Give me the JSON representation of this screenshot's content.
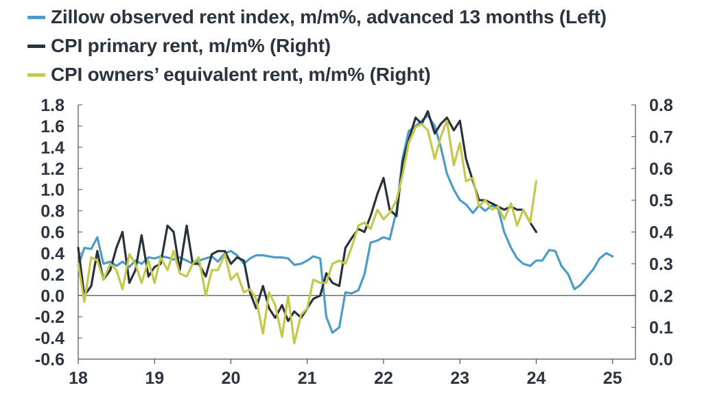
{
  "chart_data": {
    "type": "line",
    "title": "",
    "legend": [
      {
        "label": "Zillow observed rent index, m/m%, advanced 13 months (Left)",
        "color": "#4a9cc7"
      },
      {
        "label": "CPI primary rent, m/m% (Right)",
        "color": "#27323b"
      },
      {
        "label": "CPI owners’ equivalent rent, m/m% (Right)",
        "color": "#c4c84a"
      }
    ],
    "legend_position": "top-left",
    "x_ticks": [
      "18",
      "19",
      "20",
      "21",
      "22",
      "23",
      "24",
      "25"
    ],
    "xlim": [
      18,
      25.3
    ],
    "y_left": {
      "ylim": [
        -0.6,
        1.8
      ],
      "ticks": [
        "1.8",
        "1.6",
        "1.4",
        "1.2",
        "1.0",
        "0.8",
        "0.6",
        "0.4",
        "0.2",
        "0.0",
        "-0.2",
        "-0.4",
        "-0.6"
      ]
    },
    "y_right": {
      "ylim": [
        0.0,
        0.8
      ],
      "ticks": [
        "0.8",
        "0.7",
        "0.6",
        "0.5",
        "0.4",
        "0.3",
        "0.2",
        "0.1",
        "0.0"
      ]
    },
    "zero_line": 0,
    "series": [
      {
        "name": "Zillow observed rent index, m/m%, advanced 13 months (Left)",
        "axis": "left",
        "color": "#4a9cc7",
        "x": [
          18.0,
          18.08,
          18.17,
          18.25,
          18.33,
          18.42,
          18.5,
          18.58,
          18.67,
          18.75,
          18.83,
          18.92,
          19.0,
          19.08,
          19.17,
          19.25,
          19.33,
          19.42,
          19.5,
          19.58,
          19.67,
          19.75,
          19.83,
          19.92,
          20.0,
          20.08,
          20.17,
          20.25,
          20.33,
          20.42,
          20.5,
          20.58,
          20.67,
          20.75,
          20.83,
          20.92,
          21.0,
          21.08,
          21.17,
          21.25,
          21.33,
          21.42,
          21.5,
          21.58,
          21.67,
          21.75,
          21.83,
          21.92,
          22.0,
          22.08,
          22.17,
          22.25,
          22.33,
          22.42,
          22.5,
          22.58,
          22.67,
          22.75,
          22.83,
          22.92,
          23.0,
          23.08,
          23.17,
          23.25,
          23.33,
          23.42,
          23.5,
          23.58,
          23.67,
          23.75,
          23.83,
          23.92,
          24.0,
          24.08,
          24.17,
          24.25,
          24.33,
          24.42,
          24.5,
          24.58,
          24.67,
          24.75,
          24.83,
          24.92,
          25.0
        ],
        "values": [
          0.28,
          0.45,
          0.44,
          0.55,
          0.3,
          0.32,
          0.28,
          0.32,
          0.27,
          0.33,
          0.3,
          0.36,
          0.35,
          0.37,
          0.36,
          0.34,
          0.36,
          0.33,
          0.3,
          0.33,
          0.35,
          0.37,
          0.32,
          0.4,
          0.42,
          0.38,
          0.3,
          0.35,
          0.38,
          0.38,
          0.37,
          0.36,
          0.36,
          0.35,
          0.29,
          0.3,
          0.33,
          0.37,
          0.35,
          -0.2,
          -0.35,
          -0.3,
          0.03,
          0.02,
          0.05,
          0.2,
          0.5,
          0.52,
          0.55,
          0.53,
          0.8,
          1.3,
          1.55,
          1.6,
          1.65,
          1.7,
          1.6,
          1.4,
          1.15,
          1.0,
          0.9,
          0.86,
          0.78,
          0.85,
          0.8,
          0.85,
          0.82,
          0.6,
          0.45,
          0.35,
          0.3,
          0.28,
          0.33,
          0.33,
          0.43,
          0.42,
          0.28,
          0.2,
          0.06,
          0.1,
          0.18,
          0.25,
          0.35,
          0.4,
          0.37
        ]
      },
      {
        "name": "CPI primary rent, m/m% (Right)",
        "axis": "right",
        "color": "#27323b",
        "x": [
          18.0,
          18.08,
          18.17,
          18.25,
          18.33,
          18.42,
          18.5,
          18.58,
          18.67,
          18.75,
          18.83,
          18.92,
          19.0,
          19.08,
          19.17,
          19.25,
          19.33,
          19.42,
          19.5,
          19.58,
          19.67,
          19.75,
          19.83,
          19.92,
          20.0,
          20.08,
          20.17,
          20.25,
          20.33,
          20.42,
          20.5,
          20.58,
          20.67,
          20.75,
          20.83,
          20.92,
          21.0,
          21.08,
          21.17,
          21.25,
          21.33,
          21.42,
          21.5,
          21.58,
          21.67,
          21.75,
          21.83,
          21.92,
          22.0,
          22.08,
          22.17,
          22.25,
          22.33,
          22.42,
          22.5,
          22.58,
          22.67,
          22.75,
          22.83,
          22.92,
          23.0,
          23.08,
          23.17,
          23.25,
          23.33,
          23.42,
          23.5,
          23.58,
          23.67,
          23.75,
          23.83,
          23.92,
          24.0
        ],
        "values": [
          0.35,
          0.2,
          0.23,
          0.34,
          0.25,
          0.28,
          0.35,
          0.4,
          0.24,
          0.28,
          0.39,
          0.26,
          0.29,
          0.3,
          0.42,
          0.4,
          0.28,
          0.42,
          0.3,
          0.3,
          0.26,
          0.33,
          0.34,
          0.34,
          0.3,
          0.32,
          0.31,
          0.21,
          0.16,
          0.23,
          0.16,
          0.13,
          0.17,
          0.12,
          0.15,
          0.13,
          0.16,
          0.19,
          0.2,
          0.27,
          0.24,
          0.23,
          0.35,
          0.38,
          0.41,
          0.4,
          0.45,
          0.52,
          0.57,
          0.47,
          0.45,
          0.62,
          0.69,
          0.76,
          0.74,
          0.78,
          0.71,
          0.74,
          0.76,
          0.72,
          0.75,
          0.63,
          0.56,
          0.5,
          0.5,
          0.49,
          0.48,
          0.47,
          0.48,
          0.47,
          0.47,
          0.43,
          0.4
        ]
      },
      {
        "name": "CPI owners’ equivalent rent, m/m% (Right)",
        "axis": "right",
        "color": "#c4c84a",
        "x": [
          18.0,
          18.08,
          18.17,
          18.25,
          18.33,
          18.42,
          18.5,
          18.58,
          18.67,
          18.75,
          18.83,
          18.92,
          19.0,
          19.08,
          19.17,
          19.25,
          19.33,
          19.42,
          19.5,
          19.58,
          19.67,
          19.75,
          19.83,
          19.92,
          20.0,
          20.08,
          20.17,
          20.25,
          20.33,
          20.42,
          20.5,
          20.58,
          20.67,
          20.75,
          20.83,
          20.92,
          21.0,
          21.08,
          21.17,
          21.25,
          21.33,
          21.42,
          21.5,
          21.58,
          21.67,
          21.75,
          21.83,
          21.92,
          22.0,
          22.08,
          22.17,
          22.25,
          22.33,
          22.42,
          22.5,
          22.58,
          22.67,
          22.75,
          22.83,
          22.92,
          23.0,
          23.08,
          23.17,
          23.25,
          23.33,
          23.42,
          23.5,
          23.58,
          23.67,
          23.75,
          23.83,
          23.92,
          24.0
        ],
        "values": [
          0.3,
          0.18,
          0.32,
          0.31,
          0.25,
          0.3,
          0.28,
          0.22,
          0.33,
          0.3,
          0.24,
          0.31,
          0.24,
          0.32,
          0.28,
          0.34,
          0.27,
          0.26,
          0.3,
          0.32,
          0.2,
          0.28,
          0.28,
          0.33,
          0.25,
          0.27,
          0.21,
          0.22,
          0.19,
          0.08,
          0.21,
          0.17,
          0.07,
          0.2,
          0.05,
          0.14,
          0.16,
          0.25,
          0.24,
          0.24,
          0.3,
          0.31,
          0.3,
          0.35,
          0.42,
          0.43,
          0.41,
          0.47,
          0.44,
          0.46,
          0.5,
          0.58,
          0.68,
          0.73,
          0.74,
          0.72,
          0.63,
          0.7,
          0.75,
          0.61,
          0.68,
          0.56,
          0.57,
          0.48,
          0.5,
          0.47,
          0.48,
          0.44,
          0.49,
          0.42,
          0.47,
          0.43,
          0.56
        ]
      }
    ]
  }
}
